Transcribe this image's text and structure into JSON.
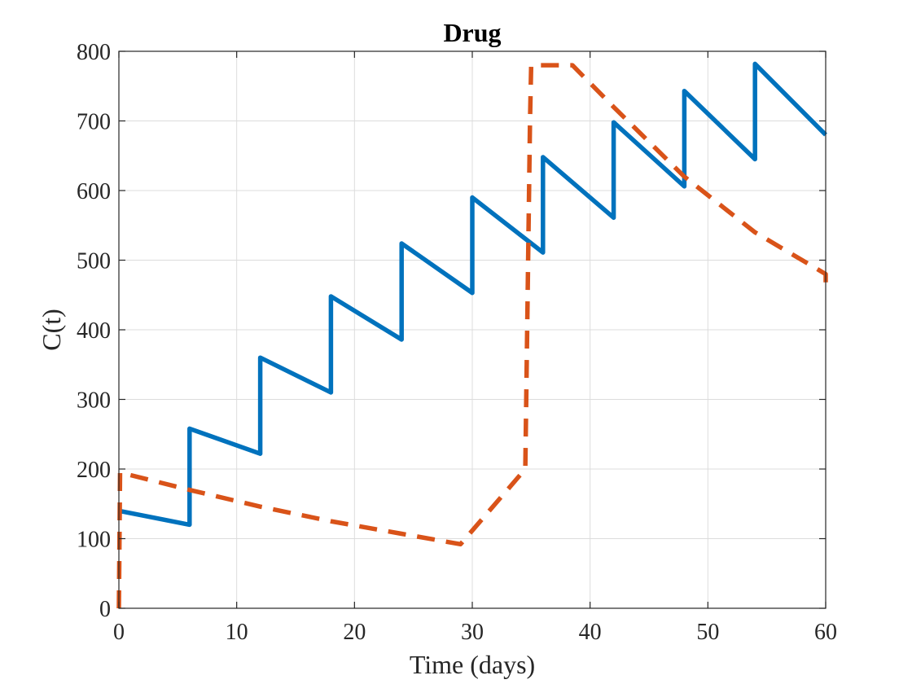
{
  "chart_data": {
    "type": "line",
    "title": "Drug",
    "xlabel": "Time (days)",
    "ylabel": "C(t)",
    "xlim": [
      0,
      60
    ],
    "ylim": [
      0,
      800
    ],
    "xticks": [
      0,
      10,
      20,
      30,
      40,
      50,
      60
    ],
    "yticks": [
      0,
      100,
      200,
      300,
      400,
      500,
      600,
      700,
      800
    ],
    "grid": true,
    "series": [
      {
        "style": "solid",
        "color": "#0072BD",
        "x": [
          0,
          6,
          6,
          12,
          12,
          18,
          18,
          24,
          24,
          30,
          30,
          36,
          36,
          42,
          42,
          48,
          48,
          54,
          54,
          60
        ],
        "y": [
          140,
          120,
          258,
          222,
          360,
          310,
          448,
          386,
          524,
          453,
          590,
          511,
          648,
          561,
          698,
          606,
          743,
          645,
          782,
          680
        ]
      },
      {
        "style": "dashed",
        "color": "#D95319",
        "x": [
          0,
          0.1,
          6,
          12,
          18,
          24,
          29,
          34.5,
          34.9,
          35,
          38.5,
          42,
          48,
          54,
          60,
          60
        ],
        "y": [
          0,
          195,
          170,
          146,
          125,
          107,
          92,
          200,
          700,
          780,
          780,
          720,
          620,
          540,
          480,
          455
        ]
      }
    ]
  }
}
